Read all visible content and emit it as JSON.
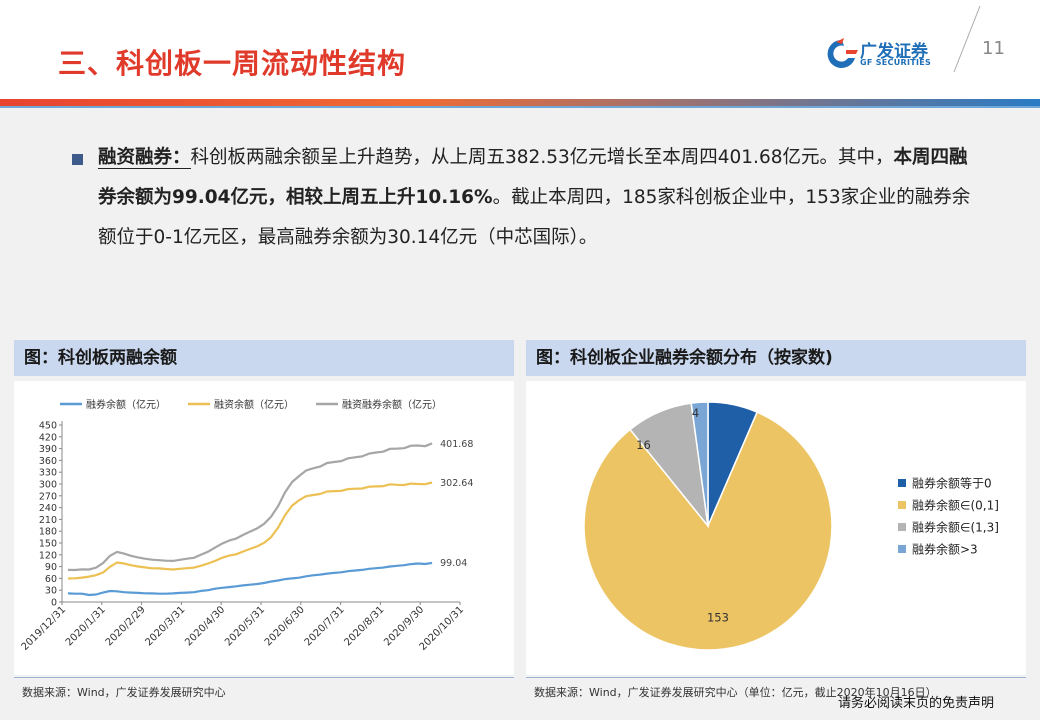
{
  "header": {
    "title": "三、科创板一周流动性结构",
    "logo_cn": "广发证券",
    "logo_en": "GF SECURITIES",
    "page_number": "11"
  },
  "body": {
    "label": "融资融券：",
    "text1": "科创板两融余额呈上升趋势，从上周五382.53亿元增长至本周四401.68亿元。其中，",
    "bold_text": "本周四融券余额为99.04亿元，相较上周五上升10.16%",
    "text2": "。截止本周四，185家科创板企业中，153家企业的融券余额位于0-1亿元区，最高融券余额为30.14亿元（中芯国际）。"
  },
  "left_panel": {
    "title": "图：科创板两融余额",
    "source": "数据来源：Wind，广发证券发展研究中心"
  },
  "right_panel": {
    "title": "图：科创板企业融券余额分布（按家数)",
    "source": "数据来源：Wind，广发证券发展研究中心（单位：亿元，截止2020年10月16日）"
  },
  "disclaimer": "请务必阅读末页的免责声明",
  "chart_data": [
    {
      "type": "line",
      "title": "图：科创板两融余额",
      "yticks": [
        0,
        30,
        60,
        90,
        120,
        150,
        180,
        210,
        240,
        270,
        300,
        330,
        360,
        390,
        420,
        450
      ],
      "ylim": [
        0,
        450
      ],
      "xticks": [
        "2019/12/31",
        "2020/1/31",
        "2020/2/29",
        "2020/3/31",
        "2020/4/30",
        "2020/5/31",
        "2020/6/30",
        "2020/7/31",
        "2020/8/31",
        "2020/9/30",
        "2020/10/31"
      ],
      "series": [
        {
          "name": "融券余额（亿元）",
          "color": "#5b9bd5",
          "end_label": "99.04",
          "values": [
            22,
            21,
            21,
            18,
            19,
            24,
            28,
            27,
            25,
            24,
            23,
            22,
            22,
            21,
            21,
            22,
            23,
            24,
            25,
            28,
            30,
            34,
            36,
            38,
            40,
            42,
            44,
            46,
            48,
            52,
            55,
            58,
            60,
            62,
            65,
            68,
            70,
            72,
            74,
            76,
            78,
            80,
            82,
            84,
            86,
            88,
            90,
            92,
            94,
            96,
            98,
            97,
            99.04
          ]
        },
        {
          "name": "融资余额（亿元）",
          "color": "#ecc052",
          "end_label": "302.64",
          "values": [
            60,
            60,
            62,
            65,
            68,
            75,
            90,
            100,
            98,
            94,
            90,
            88,
            86,
            85,
            84,
            83,
            84,
            86,
            88,
            92,
            98,
            105,
            112,
            118,
            122,
            128,
            135,
            142,
            150,
            165,
            190,
            220,
            245,
            260,
            268,
            272,
            276,
            280,
            282,
            284,
            286,
            288,
            290,
            292,
            294,
            296,
            298,
            298,
            299,
            300,
            300,
            301,
            302.64
          ]
        },
        {
          "name": "融资融券余额（亿元）",
          "color": "#a6a6a6",
          "end_label": "401.68",
          "values": [
            82,
            81,
            83,
            83,
            87,
            99,
            118,
            127,
            123,
            118,
            113,
            110,
            108,
            106,
            105,
            105,
            107,
            110,
            113,
            120,
            128,
            139,
            148,
            156,
            162,
            170,
            179,
            188,
            198,
            217,
            245,
            278,
            305,
            322,
            333,
            340,
            346,
            352,
            356,
            360,
            364,
            368,
            372,
            376,
            380,
            384,
            388,
            390,
            393,
            396,
            398,
            398,
            401.68
          ]
        }
      ]
    },
    {
      "type": "pie",
      "title": "图：科创板企业融券余额分布（按家数)",
      "slices": [
        {
          "label": "融券余额等于0",
          "value": 12,
          "color": "#1f5fa8"
        },
        {
          "label": "融券余额∈(0,1]",
          "value": 153,
          "color": "#ecc464"
        },
        {
          "label": "融券余额∈(1,3]",
          "value": 16,
          "color": "#b4b4b4"
        },
        {
          "label": "融券余额>3",
          "value": 4,
          "color": "#7aa6d6"
        }
      ]
    }
  ]
}
